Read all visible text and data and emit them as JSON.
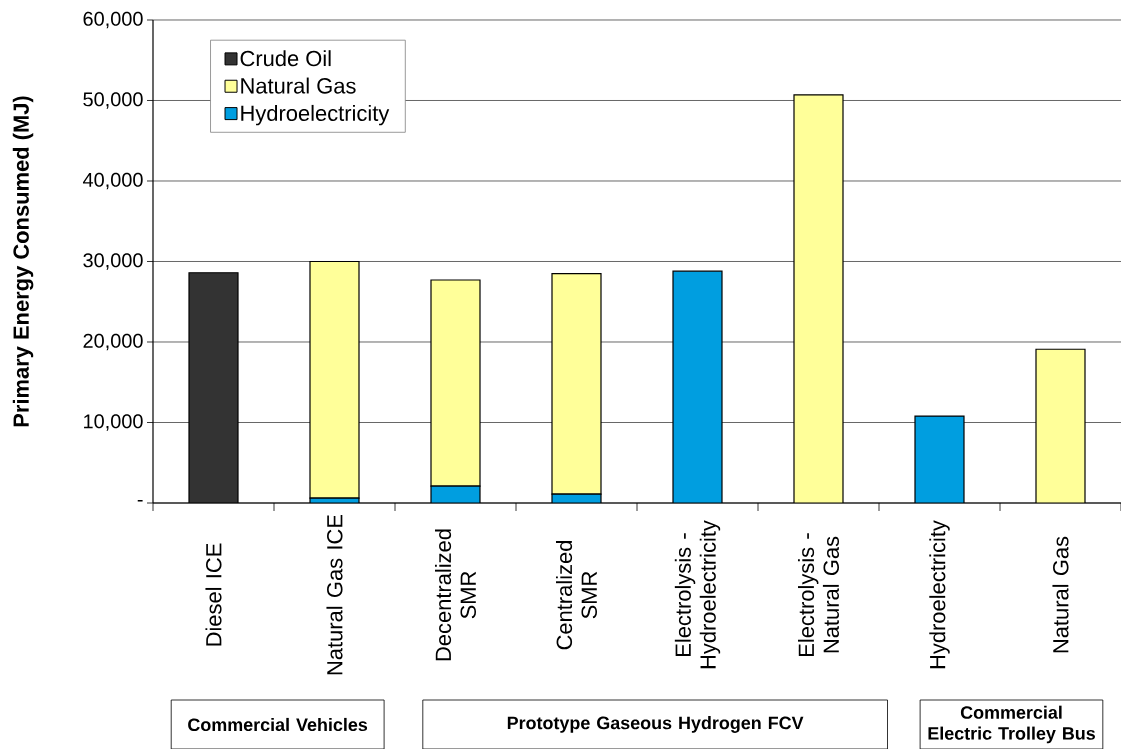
{
  "chart_data": {
    "type": "bar",
    "stacked": true,
    "ylabel": "Primary Energy Consumed (MJ)",
    "categories": [
      "Diesel ICE",
      "Natural Gas ICE",
      "Decentralized SMR",
      "Centralized SMR",
      "Electrolysis - Hydroelectricity",
      "Electrolysis - Natural Gas",
      "Hydroelectricity",
      "Natural Gas"
    ],
    "series": [
      {
        "name": "Hydroelectricity",
        "color": "#009ee0",
        "values": [
          null,
          600,
          2100,
          1100,
          28800,
          null,
          10800,
          null
        ]
      },
      {
        "name": "Natural Gas",
        "color": "#ffff99",
        "values": [
          null,
          29400,
          25600,
          27400,
          null,
          50700,
          null,
          19100
        ]
      },
      {
        "name": "Crude Oil",
        "color": "#333333",
        "values": [
          28600,
          null,
          null,
          null,
          null,
          null,
          null,
          null
        ]
      }
    ],
    "ylim": [
      0,
      60000
    ],
    "yticks": [
      {
        "value": 0,
        "label": "-"
      },
      {
        "value": 10000,
        "label": "10,000"
      },
      {
        "value": 20000,
        "label": "20,000"
      },
      {
        "value": 30000,
        "label": "30,000"
      },
      {
        "value": 40000,
        "label": "40,000"
      },
      {
        "value": 50000,
        "label": "50,000"
      },
      {
        "value": 60000,
        "label": "60,000"
      }
    ],
    "grid": "y",
    "legend": "top left",
    "annotations": [
      "Commercial Vehicles",
      "Prototype Gaseous Hydrogen FCV",
      "Commercial Electric Trolley Bus"
    ]
  }
}
